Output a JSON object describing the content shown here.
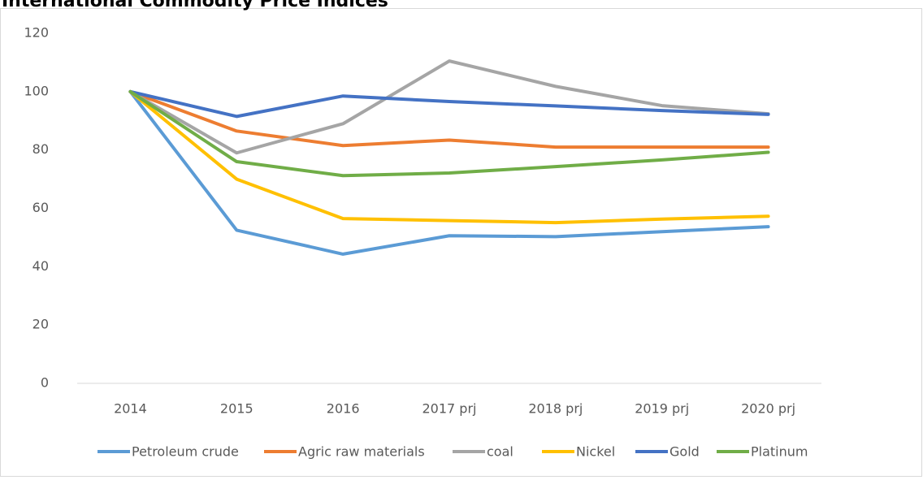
{
  "chart_data": {
    "type": "line",
    "title": "International Commodity Price Indices",
    "categories": [
      "2014",
      "2015",
      "2016",
      "2017 prj",
      "2018 prj",
      "2019 prj",
      "2020 prj"
    ],
    "series": [
      {
        "name": "Petroleum crude",
        "color": "#5b9bd5",
        "values": [
          100,
          52.5,
          44.3,
          50.6,
          50.3,
          52,
          53.7
        ]
      },
      {
        "name": "Agric raw materials",
        "color": "#ed7d31",
        "values": [
          100,
          86.5,
          81.5,
          83.4,
          81,
          81,
          81
        ]
      },
      {
        "name": "coal",
        "color": "#a5a5a5",
        "values": [
          100,
          79,
          89,
          110.5,
          101.8,
          95.2,
          92.4
        ]
      },
      {
        "name": "Nickel",
        "color": "#ffc000",
        "values": [
          100,
          70,
          56.5,
          55.8,
          55.1,
          56.3,
          57.3
        ]
      },
      {
        "name": "Gold",
        "color": "#4472c4",
        "values": [
          100,
          91.5,
          98.5,
          96.6,
          95.1,
          93.5,
          92.2
        ]
      },
      {
        "name": "Platinum",
        "color": "#70ad47",
        "values": [
          100,
          76,
          71.2,
          72.1,
          74.3,
          76.6,
          79.2
        ]
      }
    ],
    "ylim": [
      0,
      120
    ],
    "yticks": [
      0,
      20,
      40,
      60,
      80,
      100,
      120
    ],
    "grid": false,
    "legend": "bottom"
  }
}
